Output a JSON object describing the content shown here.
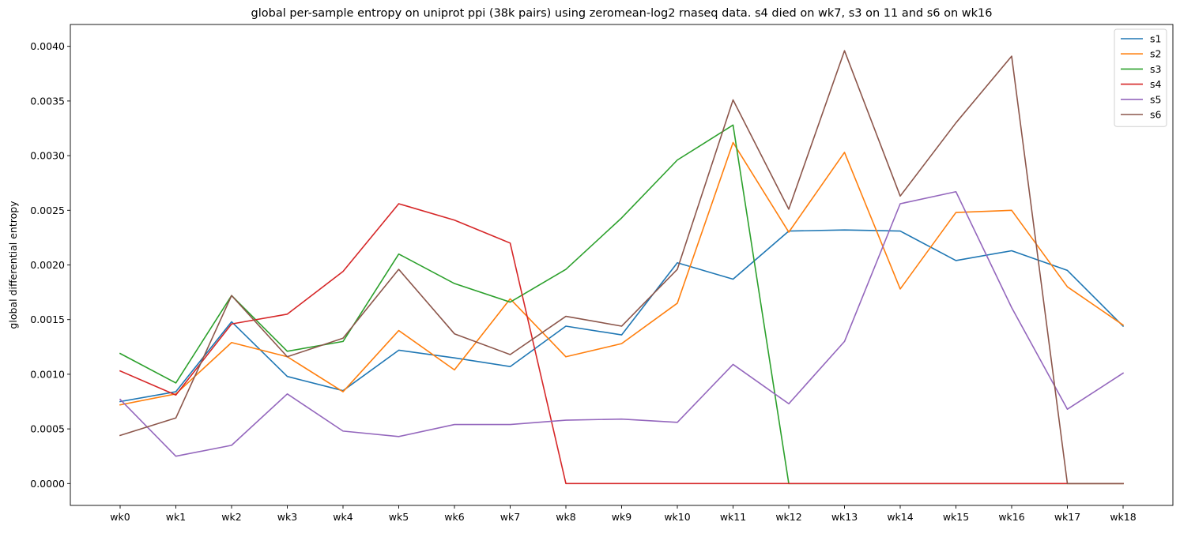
{
  "chart_data": {
    "type": "line",
    "title": "global per-sample entropy on uniprot ppi (38k pairs) using zeromean-log2 rnaseq data. s4 died on wk7, s3 on 11 and s6 on wk16",
    "xlabel": "",
    "ylabel": "global differential entropy",
    "categories": [
      "wk0",
      "wk1",
      "wk2",
      "wk3",
      "wk4",
      "wk5",
      "wk6",
      "wk7",
      "wk8",
      "wk9",
      "wk10",
      "wk11",
      "wk12",
      "wk13",
      "wk14",
      "wk15",
      "wk16",
      "wk17",
      "wk18"
    ],
    "ylim": [
      -0.0002,
      0.0042
    ],
    "yticks": [
      "0.0000",
      "0.0005",
      "0.0010",
      "0.0015",
      "0.0020",
      "0.0025",
      "0.0030",
      "0.0035",
      "0.0040"
    ],
    "grid": false,
    "legend_position": "top-right",
    "series": [
      {
        "name": "s1",
        "color": "#1f77b4",
        "values": [
          0.00075,
          0.00084,
          0.00148,
          0.00098,
          0.00085,
          0.00122,
          0.00115,
          0.00107,
          0.00144,
          0.00136,
          0.00202,
          0.00187,
          0.00231,
          0.00232,
          0.00231,
          0.00204,
          0.00213,
          0.00195,
          0.00144
        ]
      },
      {
        "name": "s2",
        "color": "#ff7f0e",
        "values": [
          0.00072,
          0.00082,
          0.00129,
          0.00116,
          0.00084,
          0.0014,
          0.00104,
          0.00169,
          0.00116,
          0.00128,
          0.00165,
          0.00312,
          0.0023,
          0.00303,
          0.00178,
          0.00248,
          0.0025,
          0.0018,
          0.00145
        ]
      },
      {
        "name": "s3",
        "color": "#2ca02c",
        "values": [
          0.00119,
          0.00092,
          0.00172,
          0.00121,
          0.0013,
          0.0021,
          0.00183,
          0.00166,
          0.00196,
          0.00243,
          0.00296,
          0.00328,
          0.0,
          0.0,
          0.0,
          0.0,
          0.0,
          0.0,
          0.0
        ]
      },
      {
        "name": "s4",
        "color": "#d62728",
        "values": [
          0.00103,
          0.00081,
          0.00146,
          0.00155,
          0.00194,
          0.00256,
          0.00241,
          0.0022,
          0.0,
          0.0,
          0.0,
          0.0,
          0.0,
          0.0,
          0.0,
          0.0,
          0.0,
          0.0,
          0.0
        ]
      },
      {
        "name": "s5",
        "color": "#9467bd",
        "values": [
          0.00077,
          0.00025,
          0.00035,
          0.00082,
          0.00048,
          0.00043,
          0.00054,
          0.00054,
          0.00058,
          0.00059,
          0.00056,
          0.00109,
          0.00073,
          0.0013,
          0.00256,
          0.00267,
          0.00161,
          0.00068,
          0.00101
        ]
      },
      {
        "name": "s6",
        "color": "#8c564b",
        "values": [
          0.00044,
          0.0006,
          0.00172,
          0.00116,
          0.00133,
          0.00196,
          0.00137,
          0.00118,
          0.00153,
          0.00144,
          0.00196,
          0.00351,
          0.00251,
          0.00396,
          0.00263,
          0.0033,
          0.00391,
          0.0,
          0.0
        ]
      }
    ]
  }
}
